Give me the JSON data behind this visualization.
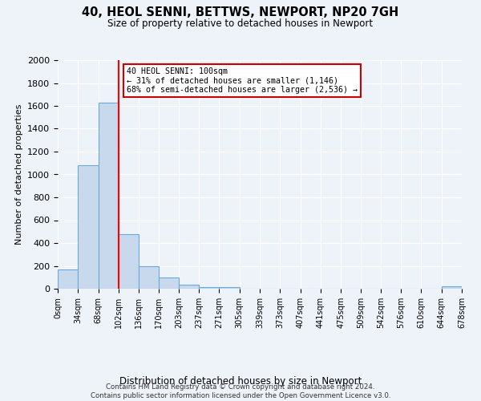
{
  "title": "40, HEOL SENNI, BETTWS, NEWPORT, NP20 7GH",
  "subtitle": "Size of property relative to detached houses in Newport",
  "xlabel": "Distribution of detached houses by size in Newport",
  "ylabel": "Number of detached properties",
  "bar_color": "#c9d9ed",
  "bar_edge_color": "#6aaad4",
  "bin_edges": [
    0,
    34,
    68,
    102,
    136,
    170,
    203,
    237,
    271,
    305,
    339,
    373,
    407,
    441,
    475,
    509,
    542,
    576,
    610,
    644,
    678
  ],
  "bar_heights": [
    170,
    1080,
    1630,
    480,
    200,
    100,
    35,
    15,
    15,
    0,
    0,
    0,
    0,
    0,
    0,
    0,
    0,
    0,
    0,
    20
  ],
  "tick_labels": [
    "0sqm",
    "34sqm",
    "68sqm",
    "102sqm",
    "136sqm",
    "170sqm",
    "203sqm",
    "237sqm",
    "271sqm",
    "305sqm",
    "339sqm",
    "373sqm",
    "407sqm",
    "441sqm",
    "475sqm",
    "509sqm",
    "542sqm",
    "576sqm",
    "610sqm",
    "644sqm",
    "678sqm"
  ],
  "ylim": [
    0,
    2000
  ],
  "yticks": [
    0,
    200,
    400,
    600,
    800,
    1000,
    1200,
    1400,
    1600,
    1800,
    2000
  ],
  "red_line_x": 102,
  "annotation_title": "40 HEOL SENNI: 100sqm",
  "annotation_line1": "← 31% of detached houses are smaller (1,146)",
  "annotation_line2": "68% of semi-detached houses are larger (2,536) →",
  "annotation_box_color": "#ffffff",
  "annotation_box_edge_color": "#cc0000",
  "footer_line1": "Contains HM Land Registry data © Crown copyright and database right 2024.",
  "footer_line2": "Contains public sector information licensed under the Open Government Licence v3.0.",
  "background_color": "#eef2f9"
}
